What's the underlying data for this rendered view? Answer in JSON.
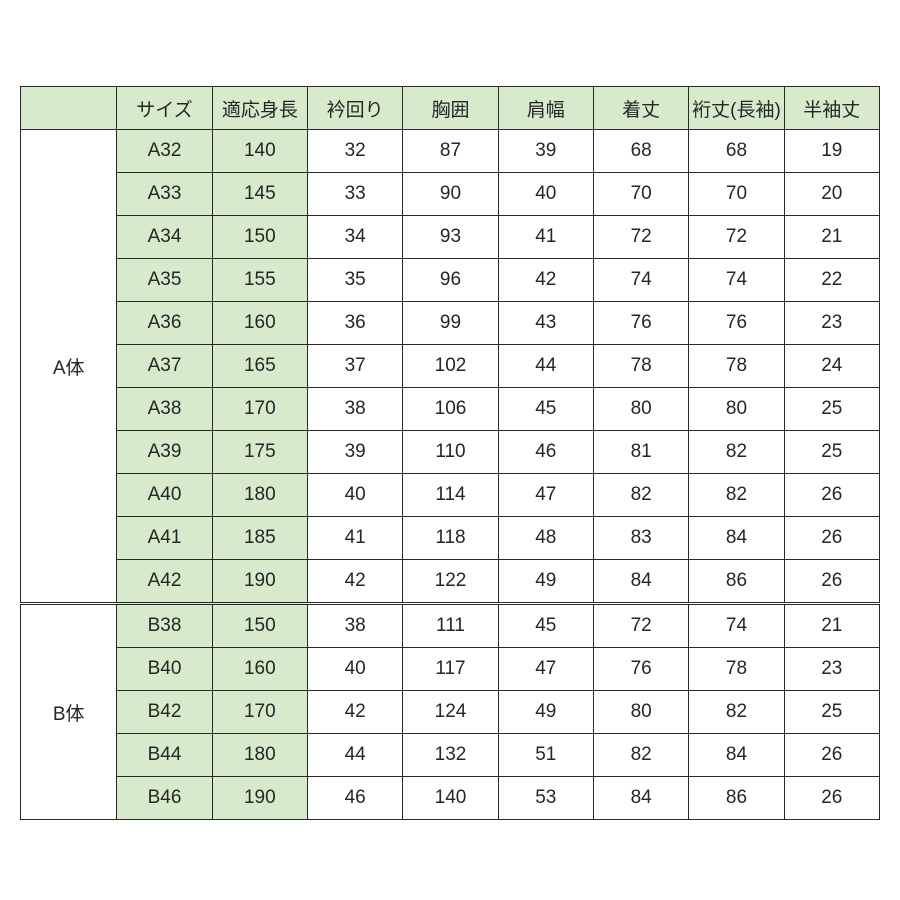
{
  "table": {
    "type": "table",
    "colors": {
      "header_bg": "#d7eacc",
      "highlight_bg": "#d7eacc",
      "border": "#282828",
      "text": "#262626",
      "bg": "#ffffff"
    },
    "font_size_pt": 14,
    "columns": [
      "",
      "サイズ",
      "適応身長",
      "衿回り",
      "胸囲",
      "肩幅",
      "着丈",
      "裄丈(長袖)",
      "半袖丈"
    ],
    "groups": [
      {
        "label": "A体",
        "rows": [
          [
            "A32",
            "140",
            "32",
            "87",
            "39",
            "68",
            "68",
            "19"
          ],
          [
            "A33",
            "145",
            "33",
            "90",
            "40",
            "70",
            "70",
            "20"
          ],
          [
            "A34",
            "150",
            "34",
            "93",
            "41",
            "72",
            "72",
            "21"
          ],
          [
            "A35",
            "155",
            "35",
            "96",
            "42",
            "74",
            "74",
            "22"
          ],
          [
            "A36",
            "160",
            "36",
            "99",
            "43",
            "76",
            "76",
            "23"
          ],
          [
            "A37",
            "165",
            "37",
            "102",
            "44",
            "78",
            "78",
            "24"
          ],
          [
            "A38",
            "170",
            "38",
            "106",
            "45",
            "80",
            "80",
            "25"
          ],
          [
            "A39",
            "175",
            "39",
            "110",
            "46",
            "81",
            "82",
            "25"
          ],
          [
            "A40",
            "180",
            "40",
            "114",
            "47",
            "82",
            "82",
            "26"
          ],
          [
            "A41",
            "185",
            "41",
            "118",
            "48",
            "83",
            "84",
            "26"
          ],
          [
            "A42",
            "190",
            "42",
            "122",
            "49",
            "84",
            "86",
            "26"
          ]
        ]
      },
      {
        "label": "B体",
        "rows": [
          [
            "B38",
            "150",
            "38",
            "111",
            "45",
            "72",
            "74",
            "21"
          ],
          [
            "B40",
            "160",
            "40",
            "117",
            "47",
            "76",
            "78",
            "23"
          ],
          [
            "B42",
            "170",
            "42",
            "124",
            "49",
            "80",
            "82",
            "25"
          ],
          [
            "B44",
            "180",
            "44",
            "132",
            "51",
            "82",
            "84",
            "26"
          ],
          [
            "B46",
            "190",
            "46",
            "140",
            "53",
            "84",
            "86",
            "26"
          ]
        ]
      }
    ]
  }
}
